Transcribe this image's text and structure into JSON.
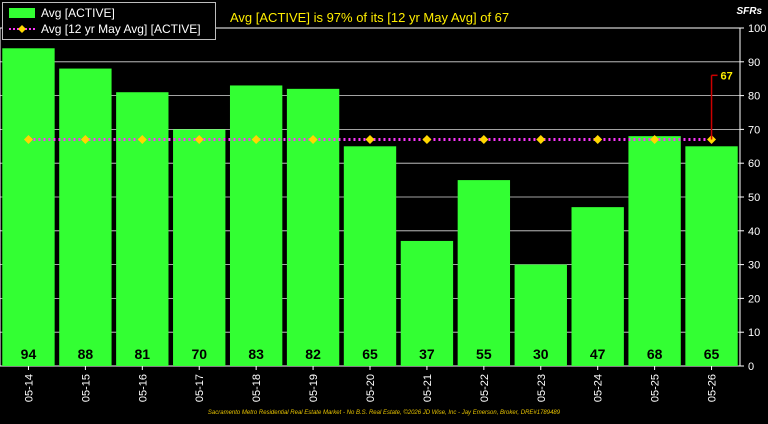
{
  "headline": "Avg [ACTIVE] is 97% of its [12 yr May Avg] of 67",
  "unit_label": "SFRs",
  "footer": "Sacramento Metro Residential Real Estate Market - No B.S. Real Estate, ©2026 JD Wise, Inc - Jay Emerson, Broker, DRE#1789489",
  "colors": {
    "bar": "#33ff33",
    "avg_line": "#ff33ff",
    "avg_marker": "#ffd700",
    "callout": "#cc0000",
    "callout_text": "#ffee00"
  },
  "chart_data": {
    "type": "bar",
    "categories": [
      "05-14",
      "05-15",
      "05-16",
      "05-17",
      "05-18",
      "05-19",
      "05-20",
      "05-21",
      "05-22",
      "05-23",
      "05-24",
      "05-25",
      "05-26"
    ],
    "series": [
      {
        "name": "Avg [ACTIVE]",
        "type": "bar",
        "values": [
          94,
          88,
          81,
          70,
          83,
          82,
          65,
          37,
          55,
          30,
          47,
          68,
          65
        ]
      },
      {
        "name": "Avg [12 yr May Avg] [ACTIVE]",
        "type": "line",
        "values": [
          67,
          67,
          67,
          67,
          67,
          67,
          67,
          67,
          67,
          67,
          67,
          67,
          67
        ]
      }
    ],
    "ylim": [
      0,
      100
    ],
    "yticks": [
      0,
      10,
      20,
      30,
      40,
      50,
      60,
      70,
      80,
      90,
      100
    ],
    "y_axis_side": "right",
    "grid": true,
    "legend_position": "top-left",
    "callout_value": "67"
  }
}
